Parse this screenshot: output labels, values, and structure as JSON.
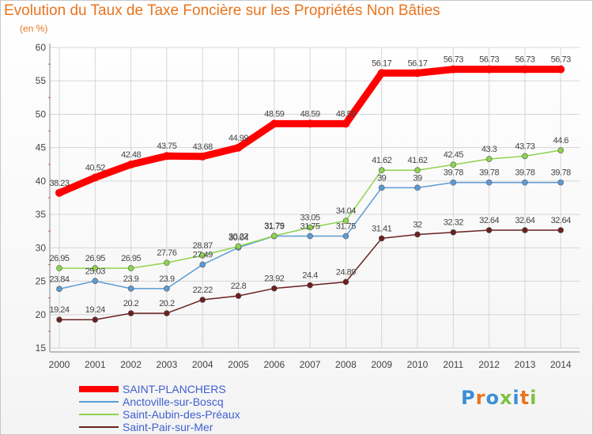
{
  "title": "Evolution du Taux de Taxe Foncière sur les Propriétés Non Bâties",
  "subtitle": "(en %)",
  "logo": {
    "text": "Proxiti",
    "colors": [
      "#3a8fd6",
      "#e8741f",
      "#3a8fd6",
      "#7cc242",
      "#3a8fd6",
      "#e8741f",
      "#7cc242"
    ]
  },
  "chart_data": {
    "type": "line",
    "ylim": [
      15,
      60
    ],
    "yticks": [
      15,
      20,
      25,
      30,
      35,
      40,
      45,
      50,
      55,
      60
    ],
    "x": [
      "2000",
      "2001",
      "2002",
      "2003",
      "2004",
      "2005",
      "2006",
      "2007",
      "2008",
      "2009",
      "2010",
      "2011",
      "2012",
      "2013",
      "2014"
    ],
    "series": [
      {
        "name": "SAINT-PLANCHERS",
        "color": "#ff0000",
        "values": [
          38.23,
          40.52,
          42.48,
          43.75,
          43.68,
          44.99,
          48.59,
          48.59,
          48.59,
          56.17,
          56.17,
          56.73,
          56.73,
          56.73,
          56.73
        ],
        "labels": [
          "38.23",
          "40.52",
          "42.48",
          "43.75",
          "43.68",
          "44.99",
          "48.59",
          "48.59",
          "48.59",
          "56.17",
          "56.17",
          "56.73",
          "56.73",
          "56.73",
          "56.73"
        ]
      },
      {
        "name": "Anctoville-sur-Boscq",
        "color": "#5b9bd5",
        "values": [
          23.84,
          25.03,
          23.9,
          23.9,
          27.49,
          30.04,
          31.75,
          31.75,
          31.75,
          39,
          39,
          39.78,
          39.78,
          39.78,
          39.78
        ],
        "labels": [
          "23.84",
          "25.03",
          "23.9",
          "23.9",
          "27.49",
          "30.04",
          "31.75",
          "31.75",
          "31.75",
          "39",
          "39",
          "39.78",
          "39.78",
          "39.78",
          "39.78"
        ]
      },
      {
        "name": "Saint-Aubin-des-Préaux",
        "color": "#8ed44e",
        "values": [
          26.95,
          26.95,
          26.95,
          27.76,
          28.87,
          30.22,
          31.79,
          33.05,
          34.04,
          41.62,
          41.62,
          42.45,
          43.3,
          43.73,
          44.6
        ],
        "labels": [
          "26.95",
          "26.95",
          "26.95",
          "27.76",
          "28.87",
          "30.22",
          "31.79",
          "33.05",
          "34.04",
          "41.62",
          "41.62",
          "42.45",
          "43.3",
          "43.73",
          "44.6"
        ]
      },
      {
        "name": "Saint-Pair-sur-Mer",
        "color": "#6b2020",
        "values": [
          19.24,
          19.24,
          20.2,
          20.2,
          22.22,
          22.8,
          23.92,
          24.4,
          24.89,
          31.41,
          32,
          32.32,
          32.64,
          32.64,
          32.64
        ],
        "labels": [
          "19.24",
          "19.24",
          "20.2",
          "20.2",
          "22.22",
          "22.8",
          "23.92",
          "24.4",
          "24.89",
          "31.41",
          "32",
          "32.32",
          "32.64",
          "32.64",
          "32.64"
        ]
      }
    ]
  }
}
